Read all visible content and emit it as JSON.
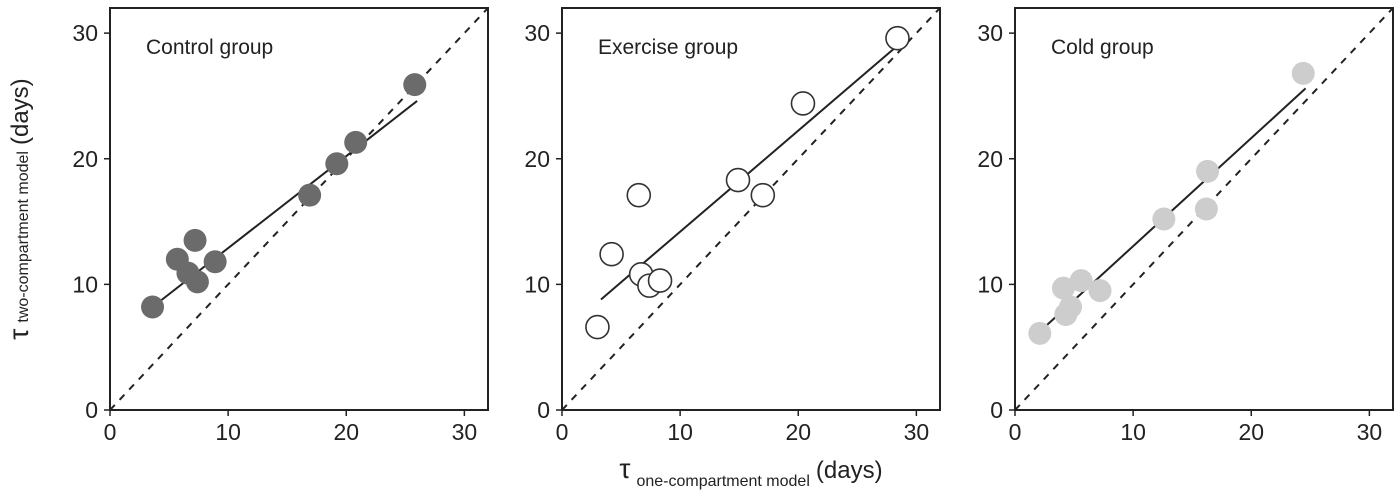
{
  "chart_data": [
    {
      "type": "scatter",
      "title": "Control group",
      "color": "#6b6b6b",
      "filled": true,
      "x": [
        3.6,
        5.7,
        6.6,
        7.2,
        7.4,
        8.9,
        16.9,
        19.2,
        20.8,
        25.8
      ],
      "y": [
        8.2,
        12.0,
        10.9,
        13.5,
        10.2,
        11.8,
        17.1,
        19.6,
        21.3,
        25.9
      ],
      "fit_line": {
        "x": [
          3.6,
          26
        ],
        "y": [
          8.2,
          24.6
        ]
      },
      "diagonal": true,
      "xlim": [
        0,
        32
      ],
      "ylim": [
        0,
        32
      ],
      "xticks": [
        0,
        10,
        20,
        30
      ],
      "yticks": [
        0,
        10,
        20,
        30
      ],
      "ylabel": {
        "symbol": "τ",
        "subscript": "two-compartment model",
        "unit": "(days)"
      }
    },
    {
      "type": "scatter",
      "title": "Exercise group",
      "color": "#333333",
      "filled": false,
      "x": [
        3.0,
        4.2,
        6.5,
        6.7,
        7.4,
        8.3,
        14.9,
        17.0,
        20.4,
        28.4
      ],
      "y": [
        6.6,
        12.4,
        17.1,
        10.8,
        9.9,
        10.3,
        18.3,
        17.1,
        24.4,
        29.6
      ],
      "fit_line": {
        "x": [
          3.3,
          28.4
        ],
        "y": [
          8.8,
          29.0
        ]
      },
      "diagonal": true,
      "xlim": [
        0,
        32
      ],
      "ylim": [
        0,
        32
      ],
      "xticks": [
        0,
        10,
        20,
        30
      ],
      "yticks": [
        0,
        10,
        20,
        30
      ],
      "xlabel": {
        "symbol": "τ",
        "subscript": "one-compartment model",
        "unit": "(days)"
      }
    },
    {
      "type": "scatter",
      "title": "Cold group",
      "color": "#cdcdcd",
      "filled": true,
      "x": [
        2.1,
        4.1,
        4.3,
        4.7,
        5.6,
        7.2,
        12.6,
        16.2,
        16.3,
        24.4
      ],
      "y": [
        6.1,
        9.7,
        7.6,
        8.2,
        10.3,
        9.5,
        15.2,
        16.0,
        19.0,
        26.8
      ],
      "fit_line": {
        "x": [
          1.7,
          24.6
        ],
        "y": [
          5.9,
          25.6
        ]
      },
      "diagonal": true,
      "xlim": [
        0,
        32
      ],
      "ylim": [
        0,
        32
      ],
      "xticks": [
        0,
        10,
        20,
        30
      ],
      "yticks": [
        0,
        10,
        20,
        30
      ]
    }
  ]
}
